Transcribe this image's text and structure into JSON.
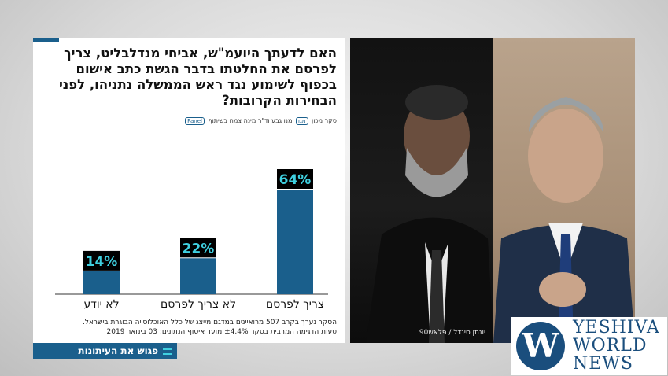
{
  "question": "האם לדעתך היועמ\"ש, אביחי מנדלבליט, צריך לפרסם את החלטתו בדבר הגשת כתב אישום בכפוף לשימוע נגד ראש הממשלה נתניהו, לפני הבחירות הקרובות?",
  "credit": {
    "prefix": "סקר מכון",
    "logo1": "מגו",
    "middle": "מנו גבע וד\"ר מינה צמח בשיתוף",
    "logo2": "Panel"
  },
  "footnote": {
    "line1": "הסקר נערך בקרב 507 מרואיינים במדגם מייצג של כלל האוכלוסייה הבוגרת בישראל.",
    "line2": "טעות הדגימה המרבית בסקר ±4.4% מועד איסוף הנתונים: 03 בינואר 2019"
  },
  "brand_bar": "פגוש את העיתונות",
  "photo_caption": "יונתן סינדל / פלאש90",
  "watermark": {
    "line1": "YESHIVA",
    "line2": "WORLD",
    "line3": "NEWS",
    "glyph": "W"
  },
  "colors": {
    "bar": "#1a5f8c",
    "label_bg": "#000000",
    "label_text": "#3fd0e0",
    "axis": "#333333"
  },
  "chart_data": {
    "type": "bar",
    "categories": [
      "לא יודע",
      "לא צריך לפרסם",
      "צריך לפרסם"
    ],
    "values": [
      14,
      22,
      64
    ],
    "value_labels": [
      "14%",
      "22%",
      "64%"
    ],
    "ylim": [
      0,
      64
    ],
    "grid": false
  }
}
